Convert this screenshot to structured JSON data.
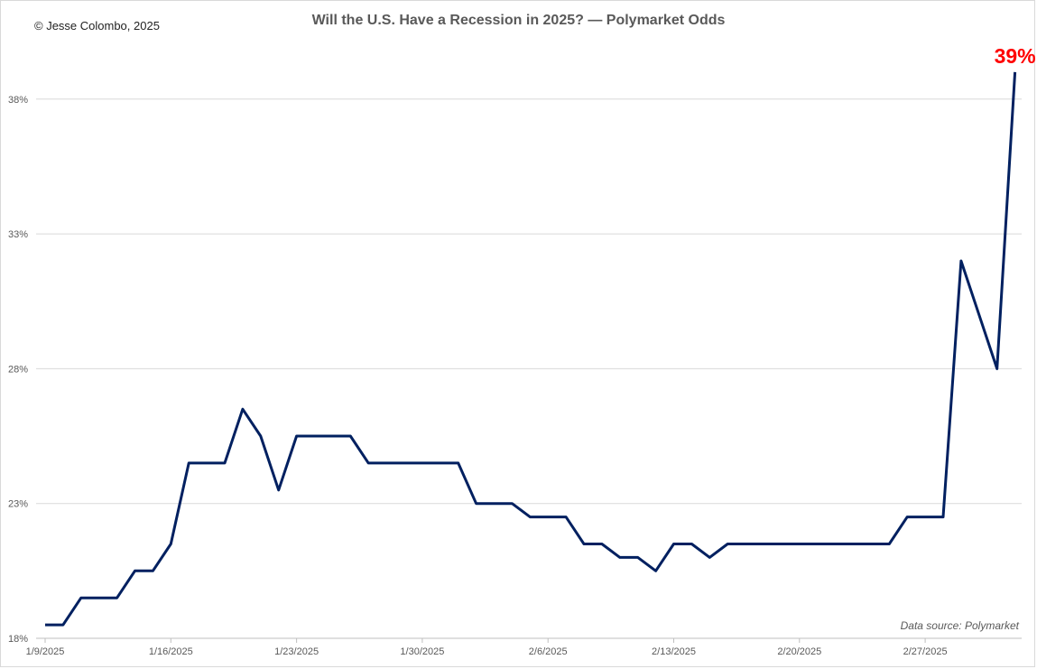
{
  "header": {
    "copyright": "© Jesse Colombo, 2025"
  },
  "footer": {
    "source": "Data source: Polymarket"
  },
  "chart_data": {
    "type": "line",
    "title": "Will the U.S. Have a Recession in 2025? — Polymarket Odds",
    "xlabel": "",
    "ylabel": "",
    "ylim": [
      18,
      39.5
    ],
    "y_ticks": [
      "18%",
      "23%",
      "28%",
      "33%",
      "38%"
    ],
    "y_tick_values": [
      18,
      23,
      28,
      33,
      38
    ],
    "x_ticks": [
      "1/9/2025",
      "1/16/2025",
      "1/23/2025",
      "1/30/2025",
      "2/6/2025",
      "2/13/2025",
      "2/20/2025",
      "2/27/2025"
    ],
    "x_tick_dates": [
      "2025-01-09",
      "2025-01-16",
      "2025-01-23",
      "2025-01-30",
      "2025-02-06",
      "2025-02-13",
      "2025-02-20",
      "2025-02-27"
    ],
    "grid": true,
    "line_color": "#002060",
    "end_label": "39%",
    "end_label_color": "#ff0000",
    "series": [
      {
        "x": [
          "2025-01-09",
          "2025-01-10",
          "2025-01-11",
          "2025-01-12",
          "2025-01-13",
          "2025-01-14",
          "2025-01-15",
          "2025-01-16",
          "2025-01-17",
          "2025-01-18",
          "2025-01-19",
          "2025-01-20",
          "2025-01-21",
          "2025-01-22",
          "2025-01-23",
          "2025-01-24",
          "2025-01-25",
          "2025-01-26",
          "2025-01-27",
          "2025-01-28",
          "2025-01-29",
          "2025-01-30",
          "2025-01-31",
          "2025-02-01",
          "2025-02-02",
          "2025-02-03",
          "2025-02-04",
          "2025-02-05",
          "2025-02-06",
          "2025-02-07",
          "2025-02-08",
          "2025-02-09",
          "2025-02-10",
          "2025-02-11",
          "2025-02-12",
          "2025-02-13",
          "2025-02-14",
          "2025-02-15",
          "2025-02-16",
          "2025-02-17",
          "2025-02-18",
          "2025-02-19",
          "2025-02-20",
          "2025-02-21",
          "2025-02-22",
          "2025-02-23",
          "2025-02-24",
          "2025-02-25",
          "2025-02-26",
          "2025-02-27",
          "2025-02-28",
          "2025-03-01",
          "2025-03-02",
          "2025-03-03",
          "2025-03-04"
        ],
        "values": [
          18.5,
          18.5,
          19.5,
          19.5,
          19.5,
          20.5,
          20.5,
          21.5,
          24.5,
          24.5,
          24.5,
          26.5,
          25.5,
          23.5,
          25.5,
          25.5,
          25.5,
          25.5,
          24.5,
          24.5,
          24.5,
          24.5,
          24.5,
          24.5,
          23.0,
          23.0,
          23.0,
          22.5,
          22.5,
          22.5,
          21.5,
          21.5,
          21.0,
          21.0,
          20.5,
          21.5,
          21.5,
          21.0,
          21.5,
          21.5,
          21.5,
          21.5,
          21.5,
          21.5,
          21.5,
          21.5,
          21.5,
          21.5,
          22.5,
          22.5,
          22.5,
          32.0,
          30.0,
          28.0,
          39.0
        ]
      }
    ]
  }
}
